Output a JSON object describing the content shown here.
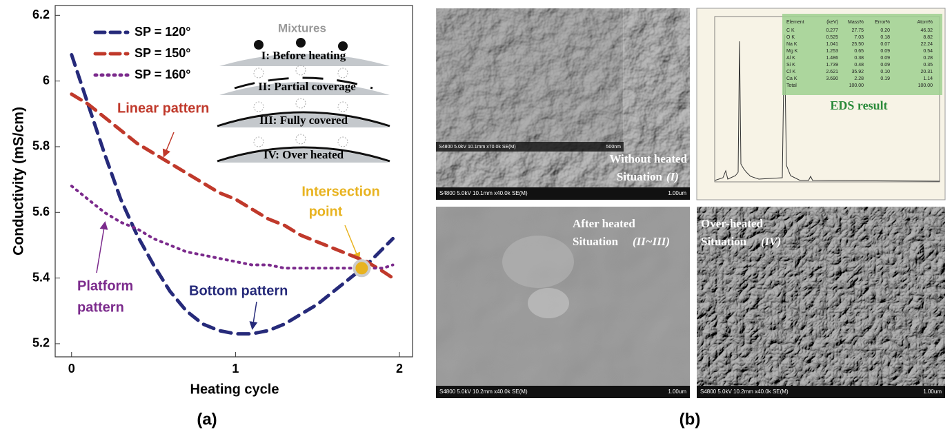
{
  "chart_data": {
    "type": "line",
    "x_label": "Heating cycle",
    "y_label": "Conductivity (mS/cm)",
    "panel_label": "(a)",
    "x": [
      0,
      0.1,
      0.2,
      0.3,
      0.4,
      0.5,
      0.6,
      0.7,
      0.8,
      0.9,
      1.0,
      1.1,
      1.2,
      1.3,
      1.4,
      1.5,
      1.6,
      1.7,
      1.8,
      1.9,
      1.96
    ],
    "series": [
      {
        "name": "SP = 120°",
        "color": "#262a7a",
        "style": "dashed",
        "values": [
          6.08,
          5.93,
          5.78,
          5.64,
          5.53,
          5.44,
          5.36,
          5.3,
          5.26,
          5.24,
          5.23,
          5.23,
          5.24,
          5.26,
          5.29,
          5.32,
          5.36,
          5.4,
          5.44,
          5.49,
          5.52
        ]
      },
      {
        "name": "SP = 150°",
        "color": "#c0392b",
        "style": "dashed",
        "values": [
          5.96,
          5.93,
          5.89,
          5.85,
          5.81,
          5.78,
          5.75,
          5.72,
          5.69,
          5.66,
          5.64,
          5.61,
          5.58,
          5.56,
          5.53,
          5.51,
          5.49,
          5.47,
          5.45,
          5.42,
          5.4
        ]
      },
      {
        "name": "SP = 160°",
        "color": "#7b2a8c",
        "style": "dotted",
        "values": [
          5.68,
          5.64,
          5.6,
          5.57,
          5.55,
          5.52,
          5.5,
          5.48,
          5.47,
          5.46,
          5.45,
          5.44,
          5.44,
          5.43,
          5.43,
          5.43,
          5.43,
          5.43,
          5.43,
          5.43,
          5.44
        ]
      }
    ],
    "xlim": [
      -0.1,
      2.08
    ],
    "ylim": [
      5.16,
      6.23
    ],
    "xticks": [
      0,
      1,
      2
    ],
    "yticks": [
      5.2,
      5.4,
      5.6,
      5.8,
      6,
      6.2
    ],
    "grid": false,
    "legend": "upper left",
    "annotations": [
      {
        "text": [
          "Linear pattern"
        ],
        "color": "#c0392b"
      },
      {
        "text": [
          "Platform",
          "pattern"
        ],
        "color": "#7b2a8c"
      },
      {
        "text": [
          "Bottom pattern"
        ],
        "color": "#262a7a"
      },
      {
        "text": [
          "Intersection",
          "point"
        ],
        "color": "#e8b320",
        "point": [
          1.77,
          5.43
        ]
      }
    ],
    "inset": {
      "title": "Mixtures",
      "stages": [
        "I: Before heating",
        "II: Partial coverage",
        "III: Fully covered",
        "IV: Over heated"
      ]
    }
  },
  "panel_b": {
    "panel_label": "(b)",
    "images": [
      {
        "caption": [
          "Without heated",
          "Situation"
        ],
        "case": "(I)",
        "footer": "S4800 5.0kV 10.1mm x40.0k SE(M)",
        "scale": "1.00um",
        "inset_footer": "S4800 5.0kV 10.1mm x70.0k SE(M)",
        "inset_scale": "500nm"
      },
      {
        "caption": [
          "After heated",
          "Situation"
        ],
        "case": "(II~III)",
        "footer": "S4800 5.0kV 10.2mm x40.0k SE(M)",
        "scale": "1.00um"
      },
      {
        "caption": [
          "Over-heated",
          "Situation"
        ],
        "case": "(IV)",
        "footer": "S4800 5.0kV 10.2mm x40.0k SE(M)",
        "scale": "1.00um"
      }
    ],
    "eds": {
      "title": "EDS result",
      "header": [
        "Element",
        "(keV)",
        "Mass%",
        "Error%",
        "Atom%"
      ],
      "rows": [
        [
          "C K",
          "0.277",
          "27.75",
          "0.20",
          "46.32"
        ],
        [
          "O K",
          "0.525",
          "7.03",
          "0.18",
          "8.82"
        ],
        [
          "Na K",
          "1.041",
          "25.50",
          "0.07",
          "22.24"
        ],
        [
          "Mg K",
          "1.253",
          "0.65",
          "0.09",
          "0.54"
        ],
        [
          "Al K",
          "1.486",
          "0.38",
          "0.09",
          "0.28"
        ],
        [
          "Si K",
          "1.739",
          "0.48",
          "0.09",
          "0.35"
        ],
        [
          "Cl K",
          "2.621",
          "35.92",
          "0.10",
          "20.31"
        ],
        [
          "Ca K",
          "3.690",
          "2.28",
          "0.19",
          "1.14"
        ]
      ],
      "total": {
        "label": "Total",
        "mass": "100.00",
        "atom": "100.00"
      }
    }
  }
}
